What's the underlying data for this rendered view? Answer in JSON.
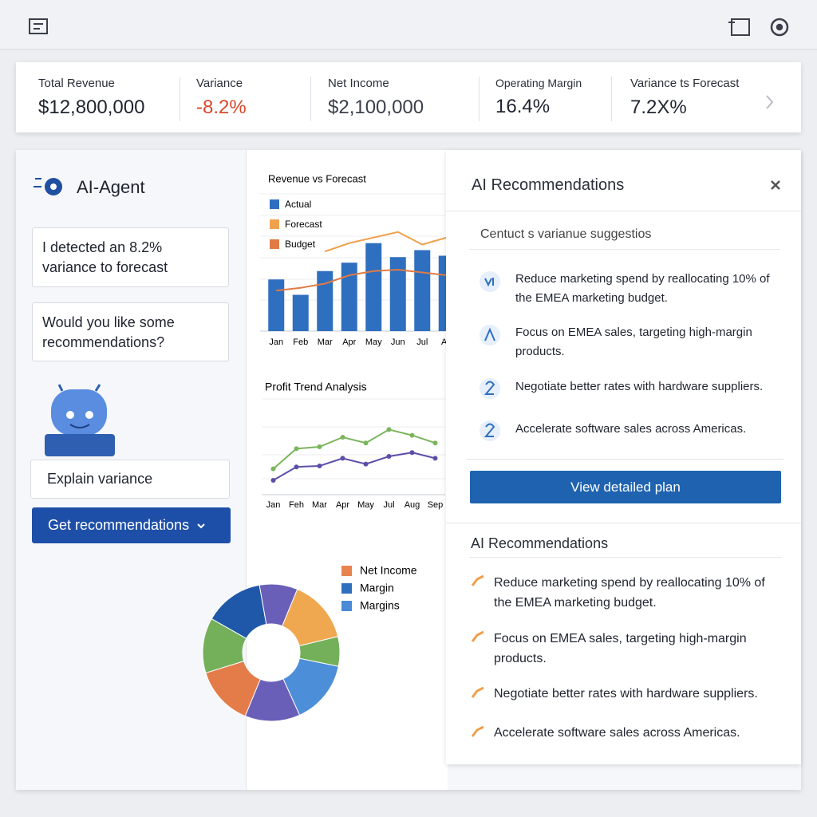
{
  "kpis": [
    {
      "label": "Total Revenue",
      "value": "$12,800,000"
    },
    {
      "label": "Variance",
      "value": "-8.2%"
    },
    {
      "label": "Net Income",
      "value": "$2,100,000"
    },
    {
      "label": "Operating Margin",
      "value": "16.4%"
    },
    {
      "label": "Variance ts Forecast",
      "value": "7.2X%"
    }
  ],
  "agent": {
    "title": "AI-Agent",
    "messages": [
      "I detected an 8.2% variance to forecast",
      "Would you like some recommendations?"
    ],
    "buttons": [
      "Explain variance",
      "Get recommendations"
    ]
  },
  "recommendations": {
    "title": "AI Recommendations",
    "subtitle": "Centuct s varianue suggestios",
    "items": [
      "Reduce marketing spend by reallocating 10% of the EMEA marketing budget.",
      "Focus on EMEA sales, targeting high-margin products.",
      "Negotiate better rates with hardware suppliers.",
      "Accelerate software sales across Americas."
    ],
    "button": "View detailed plan"
  },
  "recommendations_2": {
    "title": "AI Recommendations",
    "items": [
      "Reduce marketing spend by reallocating 10% of the EMEA marketing budget.",
      "Focus on EMEA sales, targeting high-margin products.",
      "Negotiate better rates with hardware suppliers.",
      "Accelerate software sales across Americas."
    ]
  },
  "chart_data": [
    {
      "type": "bar",
      "title": "Revenue vs Forecast",
      "categories": [
        "Jan",
        "Feb",
        "Mar",
        "Apr",
        "May",
        "Jun",
        "Jul",
        "Au"
      ],
      "ylim": [
        0,
        100
      ],
      "series": [
        {
          "name": "Actual",
          "color": "#2f6fbf",
          "mark": "bar",
          "values": [
            37,
            26,
            43,
            49,
            63,
            53,
            58,
            54
          ]
        },
        {
          "name": "Forecast",
          "color": "#eea24e",
          "mark": "line",
          "values": [
            null,
            null,
            57,
            63,
            67,
            71,
            62,
            67
          ]
        },
        {
          "name": "Budget",
          "color": "#e07b45",
          "mark": "line",
          "values": [
            29,
            31,
            34,
            40,
            43,
            44,
            42,
            40
          ]
        }
      ]
    },
    {
      "type": "line",
      "title": "Profit Trend Analysis",
      "categories": [
        "Jan",
        "Feh",
        "Mar",
        "Apr",
        "May",
        "Jul",
        "Aug",
        "Sep"
      ],
      "ylim": [
        0,
        100
      ],
      "series": [
        {
          "color": "#7ab55c",
          "values": [
            27,
            48,
            50,
            60,
            54,
            68,
            62,
            54
          ]
        },
        {
          "color": "#5b4fa8",
          "values": [
            15,
            29,
            30,
            38,
            32,
            40,
            44,
            38
          ]
        }
      ]
    },
    {
      "type": "pie",
      "values": [
        9,
        15,
        7,
        15,
        13,
        14,
        13,
        14
      ],
      "colors": [
        "#6a5fb8",
        "#f0a850",
        "#74b05a",
        "#4d8ed8",
        "#6a5fb8",
        "#e47c4a",
        "#74b05a",
        "#1f58a8"
      ],
      "legend": [
        {
          "name": "Net Income",
          "color": "#e8834f"
        },
        {
          "name": "Margin",
          "color": "#2f6fbf"
        },
        {
          "name": "Margins",
          "color": "#4a8ad6"
        }
      ]
    }
  ]
}
